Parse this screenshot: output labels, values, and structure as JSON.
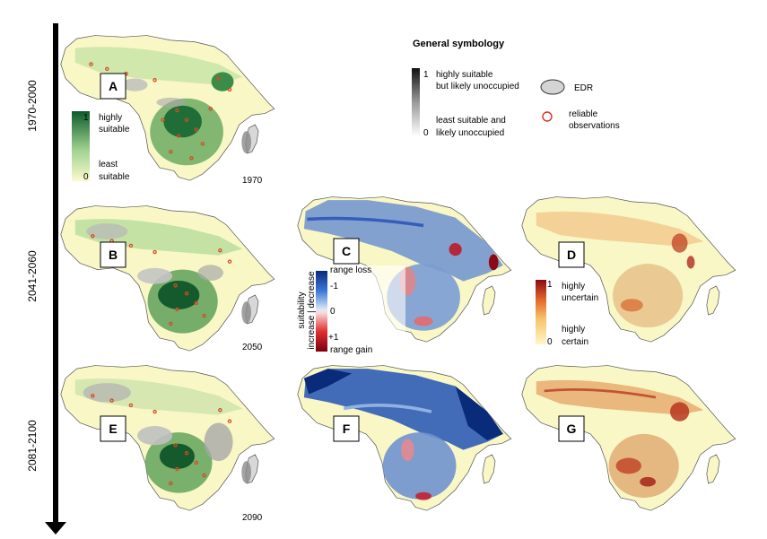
{
  "timeline": {
    "periods": [
      "1970-2000",
      "2041-2060",
      "2081-2100"
    ]
  },
  "panels": {
    "A": {
      "label": "A",
      "year": "1970"
    },
    "B": {
      "label": "B",
      "year": "2050"
    },
    "C": {
      "label": "C"
    },
    "D": {
      "label": "D"
    },
    "E": {
      "label": "E",
      "year": "2090"
    },
    "F": {
      "label": "F"
    },
    "G": {
      "label": "G"
    }
  },
  "suitability_legend": {
    "max": "1",
    "max_label_1": "highly",
    "max_label_2": "suitable",
    "min": "0",
    "min_label_1": "least",
    "min_label_2": "suitable"
  },
  "change_legend": {
    "title_1": "suitability",
    "title_2": "increase | decrease",
    "range_loss": "range loss",
    "minus_one": "-1",
    "zero": "0",
    "plus_one": "+1",
    "range_gain": "range gain"
  },
  "uncertainty_legend": {
    "max": "1",
    "max_label_1": "highly",
    "max_label_2": "uncertain",
    "min": "0",
    "min_label_1": "highly",
    "min_label_2": "certain"
  },
  "general_symbology": {
    "title": "General symbology",
    "gray_max": "1",
    "gray_max_label_1": "highly suitable",
    "gray_max_label_2": "but likely unoccupied",
    "gray_min": "0",
    "gray_min_label_1": "least suitable and",
    "gray_min_label_2": "likely unoccupied",
    "edr_label": "EDR",
    "obs_label_1": "reliable",
    "obs_label_2": "observations"
  },
  "colors": {
    "land_base": "#f9f7c6",
    "suitability_high": "#0d5a2c",
    "gray_high": "#111111",
    "edr_fill": "#8c8c8c",
    "obs_stroke": "#d93020",
    "change_loss": "#0a2a7a",
    "change_gain": "#7a0010",
    "uncertain_high": "#8b0a14"
  }
}
